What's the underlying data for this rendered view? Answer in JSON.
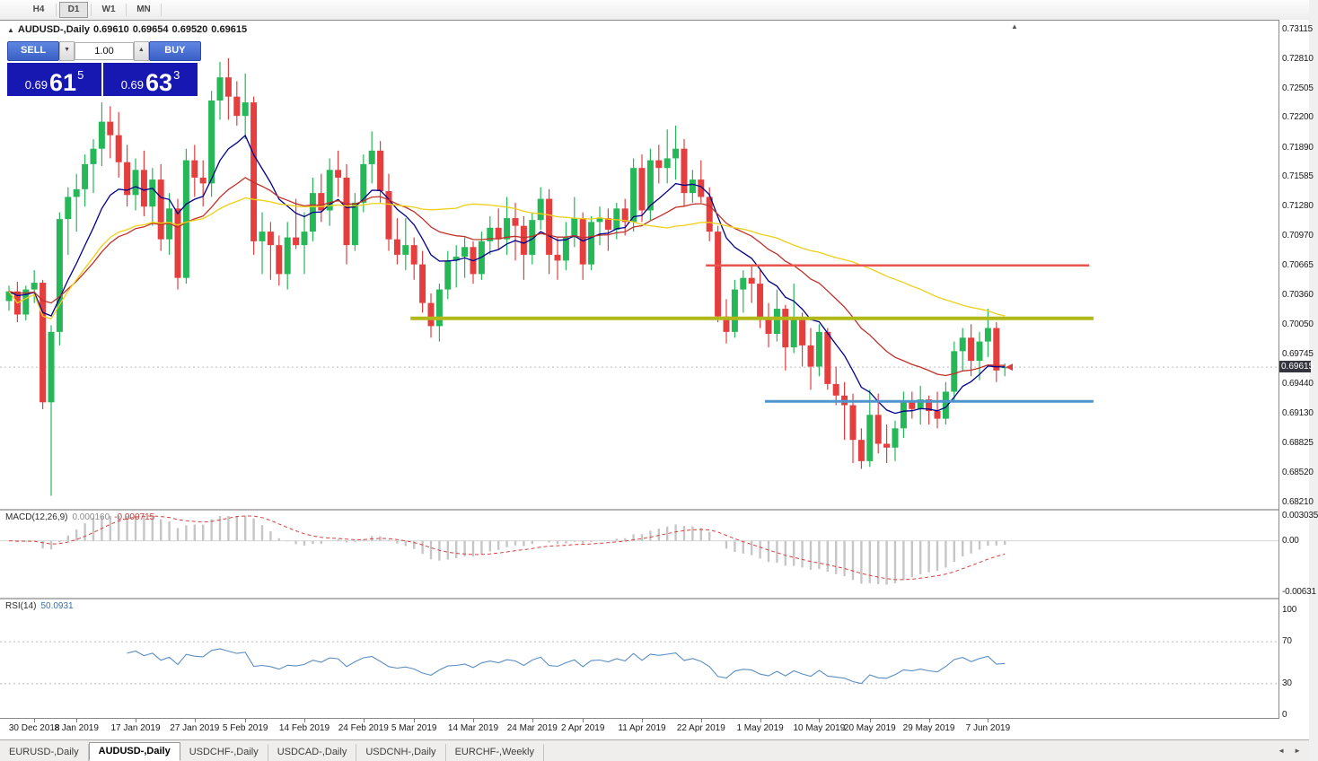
{
  "toolbar": {
    "timeframes": [
      "H4",
      "D1",
      "W1",
      "MN"
    ],
    "active_timeframe": "D1"
  },
  "chart_header": {
    "collapse_icon": "▲",
    "title": "AUDUSD-,Daily",
    "open": "0.69610",
    "high": "0.69654",
    "low": "0.69520",
    "close": "0.69615"
  },
  "trade_panel": {
    "sell_label": "SELL",
    "buy_label": "BUY",
    "lot_value": "1.00",
    "spin_down": "▼",
    "spin_up": "▲",
    "sell_price": {
      "prefix": "0.69",
      "big": "61",
      "sup": "5"
    },
    "buy_price": {
      "prefix": "0.69",
      "big": "63",
      "sup": "3"
    }
  },
  "price_axis": {
    "labels": [
      "0.73115",
      "0.72810",
      "0.72505",
      "0.72200",
      "0.71890",
      "0.71585",
      "0.71280",
      "0.70970",
      "0.70665",
      "0.70360",
      "0.70050",
      "0.69745",
      "0.69440",
      "0.69130",
      "0.68825",
      "0.68520",
      "0.68210"
    ],
    "current_label": "0.69615",
    "current_price": 0.69615
  },
  "chart_data": {
    "type": "candlestick",
    "title": "AUDUSD-,Daily",
    "up_color": "#26b758",
    "down_color": "#e53e3e",
    "candles": [
      [
        0.703,
        0.7046,
        0.702,
        0.704
      ],
      [
        0.704,
        0.705,
        0.7008,
        0.7016
      ],
      [
        0.7016,
        0.7046,
        0.701,
        0.7042
      ],
      [
        0.7042,
        0.7062,
        0.7028,
        0.7049
      ],
      [
        0.7049,
        0.7052,
        0.6918,
        0.6925
      ],
      [
        0.6925,
        0.7005,
        0.6828,
        0.6998
      ],
      [
        0.6998,
        0.7122,
        0.6984,
        0.7115
      ],
      [
        0.7115,
        0.7148,
        0.7078,
        0.7138
      ],
      [
        0.7138,
        0.7162,
        0.7102,
        0.7146
      ],
      [
        0.7146,
        0.7182,
        0.7128,
        0.7172
      ],
      [
        0.7172,
        0.7198,
        0.7142,
        0.7188
      ],
      [
        0.7188,
        0.7236,
        0.717,
        0.7216
      ],
      [
        0.7216,
        0.7232,
        0.7178,
        0.7202
      ],
      [
        0.7202,
        0.7226,
        0.7158,
        0.7174
      ],
      [
        0.7174,
        0.7192,
        0.7128,
        0.714
      ],
      [
        0.714,
        0.7178,
        0.7124,
        0.7166
      ],
      [
        0.7166,
        0.7186,
        0.7118,
        0.7128
      ],
      [
        0.7128,
        0.7168,
        0.7108,
        0.7156
      ],
      [
        0.7156,
        0.7172,
        0.7082,
        0.7094
      ],
      [
        0.7094,
        0.7142,
        0.7078,
        0.7126
      ],
      [
        0.7126,
        0.7136,
        0.7042,
        0.7054
      ],
      [
        0.7054,
        0.7188,
        0.7048,
        0.7176
      ],
      [
        0.7176,
        0.7192,
        0.7138,
        0.7158
      ],
      [
        0.7158,
        0.7176,
        0.7128,
        0.7152
      ],
      [
        0.7152,
        0.7248,
        0.7138,
        0.7238
      ],
      [
        0.7238,
        0.7278,
        0.7218,
        0.7262
      ],
      [
        0.7262,
        0.7282,
        0.7218,
        0.7242
      ],
      [
        0.7242,
        0.7258,
        0.7212,
        0.7222
      ],
      [
        0.7222,
        0.7266,
        0.7198,
        0.7236
      ],
      [
        0.7236,
        0.7242,
        0.7078,
        0.7092
      ],
      [
        0.7092,
        0.7122,
        0.7058,
        0.7102
      ],
      [
        0.7102,
        0.7112,
        0.7052,
        0.7088
      ],
      [
        0.7088,
        0.7098,
        0.7046,
        0.7058
      ],
      [
        0.7058,
        0.7112,
        0.7042,
        0.7096
      ],
      [
        0.7096,
        0.7136,
        0.7084,
        0.7088
      ],
      [
        0.7088,
        0.7122,
        0.7058,
        0.7102
      ],
      [
        0.7102,
        0.7158,
        0.7092,
        0.7142
      ],
      [
        0.7142,
        0.7162,
        0.7112,
        0.7124
      ],
      [
        0.7124,
        0.7178,
        0.7108,
        0.7166
      ],
      [
        0.7166,
        0.7186,
        0.7138,
        0.7158
      ],
      [
        0.7158,
        0.7172,
        0.7068,
        0.7088
      ],
      [
        0.7088,
        0.7142,
        0.7082,
        0.7132
      ],
      [
        0.7132,
        0.7182,
        0.7122,
        0.7172
      ],
      [
        0.7172,
        0.7206,
        0.7152,
        0.7186
      ],
      [
        0.7186,
        0.7196,
        0.7132,
        0.7144
      ],
      [
        0.7144,
        0.7162,
        0.7082,
        0.7094
      ],
      [
        0.7094,
        0.7116,
        0.7068,
        0.7078
      ],
      [
        0.7078,
        0.7116,
        0.7062,
        0.7088
      ],
      [
        0.7088,
        0.7096,
        0.7052,
        0.7068
      ],
      [
        0.7068,
        0.7082,
        0.7018,
        0.7028
      ],
      [
        0.7028,
        0.7038,
        0.6992,
        0.7004
      ],
      [
        0.7004,
        0.7048,
        0.6988,
        0.7042
      ],
      [
        0.7042,
        0.7082,
        0.7032,
        0.7072
      ],
      [
        0.7072,
        0.7088,
        0.7044,
        0.7076
      ],
      [
        0.7076,
        0.7096,
        0.7054,
        0.7086
      ],
      [
        0.7086,
        0.7092,
        0.7048,
        0.7058
      ],
      [
        0.7058,
        0.7102,
        0.7052,
        0.7092
      ],
      [
        0.7092,
        0.7118,
        0.7078,
        0.7106
      ],
      [
        0.7106,
        0.7126,
        0.7084,
        0.7094
      ],
      [
        0.7094,
        0.7138,
        0.7078,
        0.7116
      ],
      [
        0.7116,
        0.7132,
        0.7072,
        0.7108
      ],
      [
        0.7108,
        0.7118,
        0.7052,
        0.7078
      ],
      [
        0.7078,
        0.7122,
        0.7068,
        0.7114
      ],
      [
        0.7114,
        0.7148,
        0.7104,
        0.7136
      ],
      [
        0.7136,
        0.7146,
        0.7058,
        0.7078
      ],
      [
        0.7078,
        0.7096,
        0.7052,
        0.7072
      ],
      [
        0.7072,
        0.7112,
        0.7062,
        0.7096
      ],
      [
        0.7096,
        0.7138,
        0.7086,
        0.7116
      ],
      [
        0.7116,
        0.7122,
        0.7052,
        0.7068
      ],
      [
        0.7068,
        0.7118,
        0.7062,
        0.7112
      ],
      [
        0.7112,
        0.7128,
        0.7088,
        0.7116
      ],
      [
        0.7116,
        0.7126,
        0.7082,
        0.7104
      ],
      [
        0.7104,
        0.7132,
        0.7094,
        0.7126
      ],
      [
        0.7126,
        0.7136,
        0.7098,
        0.7112
      ],
      [
        0.7112,
        0.7178,
        0.7102,
        0.7168
      ],
      [
        0.7168,
        0.7182,
        0.7112,
        0.7124
      ],
      [
        0.7124,
        0.7188,
        0.7114,
        0.7176
      ],
      [
        0.7176,
        0.7192,
        0.7152,
        0.7168
      ],
      [
        0.7168,
        0.7208,
        0.7152,
        0.7178
      ],
      [
        0.7178,
        0.7212,
        0.7156,
        0.7188
      ],
      [
        0.7188,
        0.7198,
        0.7128,
        0.7142
      ],
      [
        0.7142,
        0.7166,
        0.7132,
        0.7156
      ],
      [
        0.7156,
        0.7176,
        0.7132,
        0.7138
      ],
      [
        0.7138,
        0.7148,
        0.7092,
        0.7102
      ],
      [
        0.7102,
        0.7108,
        0.7008,
        0.7014
      ],
      [
        0.7014,
        0.7032,
        0.6986,
        0.6998
      ],
      [
        0.6998,
        0.7052,
        0.6992,
        0.7042
      ],
      [
        0.7042,
        0.7062,
        0.7018,
        0.7054
      ],
      [
        0.7054,
        0.7068,
        0.7028,
        0.7048
      ],
      [
        0.7048,
        0.7062,
        0.7002,
        0.7012
      ],
      [
        0.7012,
        0.7028,
        0.6982,
        0.6996
      ],
      [
        0.6996,
        0.7042,
        0.6988,
        0.7022
      ],
      [
        0.7022,
        0.7026,
        0.6958,
        0.6982
      ],
      [
        0.6982,
        0.7048,
        0.6976,
        0.7012
      ],
      [
        0.7012,
        0.7018,
        0.6962,
        0.6984
      ],
      [
        0.6984,
        0.7002,
        0.6938,
        0.6962
      ],
      [
        0.6962,
        0.7006,
        0.6952,
        0.6998
      ],
      [
        0.6998,
        0.7002,
        0.6938,
        0.6944
      ],
      [
        0.6944,
        0.6962,
        0.6922,
        0.6932
      ],
      [
        0.6932,
        0.6946,
        0.6886,
        0.6922
      ],
      [
        0.6922,
        0.6934,
        0.6862,
        0.6886
      ],
      [
        0.6886,
        0.6898,
        0.6856,
        0.6864
      ],
      [
        0.6864,
        0.6938,
        0.6858,
        0.6912
      ],
      [
        0.6912,
        0.6934,
        0.6872,
        0.6882
      ],
      [
        0.6882,
        0.6902,
        0.6862,
        0.6878
      ],
      [
        0.6878,
        0.6906,
        0.6864,
        0.6898
      ],
      [
        0.6898,
        0.6936,
        0.6888,
        0.6926
      ],
      [
        0.6926,
        0.6936,
        0.6908,
        0.6918
      ],
      [
        0.6918,
        0.6942,
        0.6902,
        0.6928
      ],
      [
        0.6928,
        0.6932,
        0.6902,
        0.6916
      ],
      [
        0.6916,
        0.6936,
        0.6898,
        0.6908
      ],
      [
        0.6908,
        0.6946,
        0.6902,
        0.6936
      ],
      [
        0.6936,
        0.6988,
        0.6926,
        0.6978
      ],
      [
        0.6978,
        0.7002,
        0.6958,
        0.6992
      ],
      [
        0.6992,
        0.7006,
        0.6952,
        0.6968
      ],
      [
        0.6968,
        0.6998,
        0.6948,
        0.6988
      ],
      [
        0.6988,
        0.7022,
        0.6972,
        0.7002
      ],
      [
        0.7002,
        0.7008,
        0.6946,
        0.6958
      ],
      [
        0.6961,
        0.69654,
        0.6952,
        0.69615
      ]
    ],
    "x_labels": [
      {
        "text": "30 Dec 2018",
        "bar": 3
      },
      {
        "text": "8 Jan 2019",
        "bar": 8
      },
      {
        "text": "17 Jan 2019",
        "bar": 15
      },
      {
        "text": "27 Jan 2019",
        "bar": 22
      },
      {
        "text": "5 Feb 2019",
        "bar": 28
      },
      {
        "text": "14 Feb 2019",
        "bar": 35
      },
      {
        "text": "24 Feb 2019",
        "bar": 42
      },
      {
        "text": "5 Mar 2019",
        "bar": 48
      },
      {
        "text": "14 Mar 2019",
        "bar": 55
      },
      {
        "text": "24 Mar 2019",
        "bar": 62
      },
      {
        "text": "2 Apr 2019",
        "bar": 68
      },
      {
        "text": "11 Apr 2019",
        "bar": 75
      },
      {
        "text": "22 Apr 2019",
        "bar": 82
      },
      {
        "text": "1 May 2019",
        "bar": 89
      },
      {
        "text": "10 May 2019",
        "bar": 96
      },
      {
        "text": "20 May 2019",
        "bar": 102
      },
      {
        "text": "29 May 2019",
        "bar": 109
      },
      {
        "text": "7 Jun 2019",
        "bar": 116
      }
    ],
    "moving_averages": [
      {
        "period": 10,
        "method": "ema",
        "color": "#00008b"
      },
      {
        "period": 25,
        "method": "ema",
        "color": "#c03028"
      },
      {
        "period": 50,
        "method": "sma",
        "color": "#edd017"
      }
    ],
    "hlines": [
      {
        "price": 0.7067,
        "color": "#e9544f",
        "width": 2.5,
        "from_bar": 83,
        "to_bar": 128
      },
      {
        "price": 0.7012,
        "color": "#b0b918",
        "width": 4,
        "from_bar": 48,
        "to_bar": 128.5
      },
      {
        "price": 0.6926,
        "color": "#4f94cd",
        "width": 3,
        "from_bar": 90,
        "to_bar": 128.5
      }
    ],
    "bid_line": {
      "price": 0.69615,
      "color": "#c0c0c0"
    },
    "last_tick_marker_color": "#e23a3a"
  },
  "macd_panel": {
    "label": "MACD(12,26,9)",
    "value_main": "0.000160",
    "value_signal": "-0.000715",
    "params": {
      "fast": 12,
      "slow": 26,
      "signal": 9
    },
    "axis": {
      "max": 0.003035,
      "min": -0.00631,
      "labels": [
        "0.003035",
        "0.00",
        "-0.00631"
      ]
    },
    "bar_color": "#c6c6c6",
    "signal_color": "#d94040"
  },
  "rsi_panel": {
    "label": "RSI(14)",
    "value": "50.0931",
    "period": 14,
    "axis_labels": [
      "100",
      "70",
      "30",
      "0"
    ],
    "levels": [
      70,
      30
    ],
    "line_color": "#5b8ec4"
  },
  "tab_bar": {
    "tabs": [
      {
        "label": "EURUSD-,Daily",
        "active": false
      },
      {
        "label": "AUDUSD-,Daily",
        "active": true
      },
      {
        "label": "USDCHF-,Daily",
        "active": false
      },
      {
        "label": "USDCAD-,Daily",
        "active": false
      },
      {
        "label": "USDCNH-,Daily",
        "active": false
      },
      {
        "label": "EURCHF-,Weekly",
        "active": false
      }
    ],
    "scroll_left": "◄",
    "scroll_right": "►"
  },
  "misc": {
    "autoscroll_icon": "▲"
  }
}
